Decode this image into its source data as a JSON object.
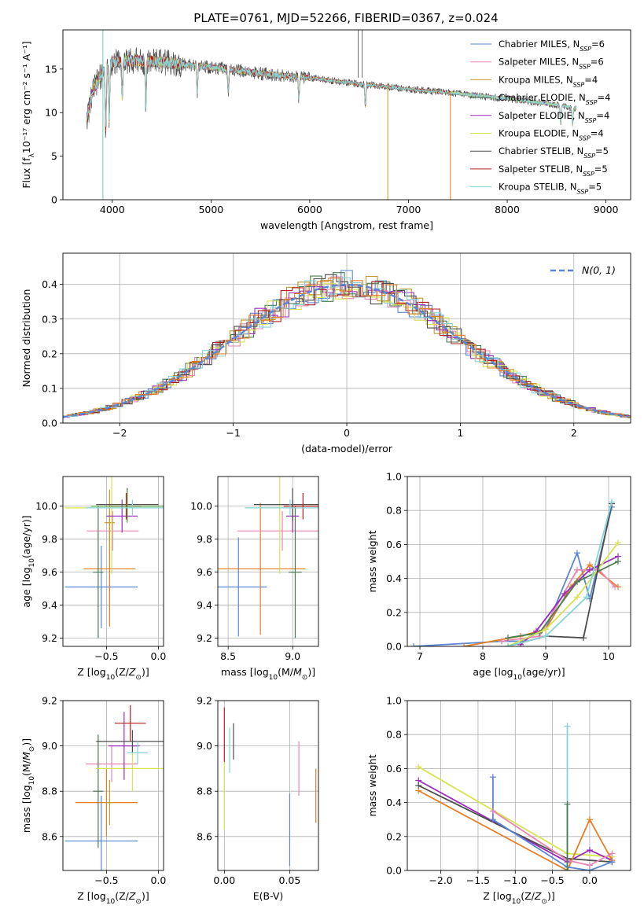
{
  "figure": {
    "title": "PLATE=0761, MJD=52266, FIBERID=0367, z=0.024"
  },
  "colors": {
    "Chabrier MILES": "#5b86d6",
    "Salpeter MILES": "#e887b3",
    "Kroupa MILES": "#c59a2a",
    "Chabrier ELODIE": "#4a7c53",
    "Salpeter ELODIE": "#9a2dbb",
    "Kroupa ELODIE": "#d8e350",
    "Chabrier STELIB": "#4d4d4d",
    "Salpeter STELIB": "#b41f1f",
    "Kroupa STELIB": "#86d4d6",
    "orange": "#e67e22",
    "green": "#5aa34a"
  },
  "chart_data": [
    {
      "id": "spectrum",
      "type": "line",
      "xlabel": "wavelength [Angstrom, rest frame]",
      "ylabel": "Flux [fλ10⁻¹⁷ erg cm⁻² s⁻¹ A⁻¹]",
      "xlim": [
        3500,
        9250
      ],
      "ylim": [
        0,
        19.5
      ],
      "xticks": [
        4000,
        5000,
        6000,
        7000,
        8000,
        9000
      ],
      "yticks": [
        0,
        5,
        10,
        15
      ],
      "grid": false,
      "legend_position": "top-right",
      "series": [
        {
          "name": "Chabrier MILES, N",
          "sub": "SSP",
          "suffix": "=6"
        },
        {
          "name": "Salpeter MILES, N",
          "sub": "SSP",
          "suffix": "=6"
        },
        {
          "name": "Kroupa MILES, N",
          "sub": "SSP",
          "suffix": "=4"
        },
        {
          "name": "Chabrier ELODIE, N",
          "sub": "SSP",
          "suffix": "=4"
        },
        {
          "name": "Salpeter ELODIE, N",
          "sub": "SSP",
          "suffix": "=4"
        },
        {
          "name": "Kroupa ELODIE, N",
          "sub": "SSP",
          "suffix": "=4"
        },
        {
          "name": "Chabrier STELIB, N",
          "sub": "SSP",
          "suffix": "=5"
        },
        {
          "name": "Salpeter STELIB, N",
          "sub": "SSP",
          "suffix": "=5"
        },
        {
          "name": "Kroupa STELIB, N",
          "sub": "SSP",
          "suffix": "=5"
        }
      ],
      "continuum": [
        [
          3750,
          9.5
        ],
        [
          3800,
          12.5
        ],
        [
          3900,
          14.5
        ],
        [
          4000,
          15.8
        ],
        [
          4200,
          16.0
        ],
        [
          4500,
          15.8
        ],
        [
          5000,
          15.2
        ],
        [
          5500,
          14.5
        ],
        [
          6000,
          14.0
        ],
        [
          6500,
          13.3
        ],
        [
          7000,
          12.7
        ],
        [
          7500,
          12.2
        ],
        [
          8000,
          11.6
        ],
        [
          8500,
          10.9
        ],
        [
          8700,
          10.5
        ]
      ]
    },
    {
      "id": "residuals",
      "type": "histogram",
      "xlabel": "(data-model)/error",
      "ylabel": "Normed distribution",
      "xlim": [
        -2.5,
        2.5
      ],
      "ylim": [
        0,
        0.49
      ],
      "xticks": [
        -2,
        -1,
        0,
        1,
        2
      ],
      "yticks": [
        0.0,
        0.1,
        0.2,
        0.3,
        0.4
      ],
      "grid": true,
      "legend": "N(0, 1)",
      "bin_width": 0.1,
      "reference_curve": "gaussian mean 0 sigma 1"
    },
    {
      "id": "age-vs-Z",
      "type": "scatter",
      "xlabel": "Z [log10(Z/Z⊙)]",
      "ylabel": "age  [log10(age/yr)]",
      "xlim": [
        -0.92,
        0.05
      ],
      "ylim": [
        9.15,
        10.18
      ],
      "xticks": [
        -0.5,
        0.0
      ],
      "yticks": [
        9.2,
        9.4,
        9.6,
        9.8,
        10.0
      ],
      "grid": true,
      "points": [
        {
          "series": "Chabrier MILES",
          "x": -0.55,
          "xerr": 0.35,
          "y": 9.51,
          "yerr": 0.25
        },
        {
          "series": "orange",
          "x": -0.47,
          "xerr": 0.25,
          "y": 9.62,
          "yerr": 0.35
        },
        {
          "series": "Salpeter MILES",
          "x": -0.44,
          "xerr": 0.25,
          "y": 9.85,
          "yerr": 0.12
        },
        {
          "series": "Chabrier ELODIE",
          "x": -0.58,
          "xerr": 0.05,
          "y": 9.6,
          "yerr": 0.4
        },
        {
          "series": "Kroupa MILES",
          "x": -0.47,
          "xerr": 0.05,
          "y": 9.9,
          "yerr": 0.2
        },
        {
          "series": "Kroupa ELODIE",
          "x": -0.45,
          "xerr": 0.45,
          "y": 9.99,
          "yerr": 0.4
        },
        {
          "series": "Salpeter ELODIE",
          "x": -0.35,
          "xerr": 0.15,
          "y": 9.94,
          "yerr": 0.1
        },
        {
          "series": "Chabrier STELIB",
          "x": -0.3,
          "xerr": 0.3,
          "y": 10.01,
          "yerr": 0.1
        },
        {
          "series": "Salpeter STELIB",
          "x": -0.31,
          "xerr": 0.15,
          "y": 10.0,
          "yerr": 0.08
        },
        {
          "series": "green",
          "x": -0.3,
          "xerr": 0.35,
          "y": 10.0,
          "yerr": 0.1
        },
        {
          "series": "Kroupa STELIB",
          "x": -0.25,
          "xerr": 0.45,
          "y": 9.99,
          "yerr": 0.05
        }
      ]
    },
    {
      "id": "age-vs-mass",
      "type": "scatter",
      "xlabel": "mass [log10(M/M⊙)]",
      "xlim": [
        8.42,
        9.2
      ],
      "ylim": [
        9.15,
        10.18
      ],
      "xticks": [
        8.5,
        9.0
      ],
      "yticks": [
        9.2,
        9.4,
        9.6,
        9.8,
        10.0
      ],
      "grid": true,
      "points": [
        {
          "series": "Chabrier MILES",
          "x": 8.58,
          "xerr": 0.22,
          "y": 9.51,
          "yerr": 0.3
        },
        {
          "series": "orange",
          "x": 8.75,
          "xerr": 0.35,
          "y": 9.62,
          "yerr": 0.4
        },
        {
          "series": "Salpeter MILES",
          "x": 8.92,
          "xerr": 0.35,
          "y": 9.85,
          "yerr": 0.12
        },
        {
          "series": "Chabrier ELODIE",
          "x": 9.02,
          "xerr": 0.05,
          "y": 9.6,
          "yerr": 0.4
        },
        {
          "series": "Kroupa ELODIE",
          "x": 8.9,
          "xerr": 0.15,
          "y": 9.99,
          "yerr": 0.4
        },
        {
          "series": "Salpeter ELODIE",
          "x": 9.0,
          "xerr": 0.05,
          "y": 9.94,
          "yerr": 0.1
        },
        {
          "series": "Chabrier STELIB",
          "x": 9.0,
          "xerr": 0.3,
          "y": 10.01,
          "yerr": 0.1
        },
        {
          "series": "Salpeter STELIB",
          "x": 9.08,
          "xerr": 0.15,
          "y": 10.0,
          "yerr": 0.08
        },
        {
          "series": "Kroupa STELIB",
          "x": 8.98,
          "xerr": 0.35,
          "y": 9.99,
          "yerr": 0.05
        }
      ]
    },
    {
      "id": "weight-vs-age",
      "type": "line",
      "xlabel": "age  [log10(age/yr)]",
      "ylabel": "mass weight",
      "xlim": [
        6.8,
        10.35
      ],
      "ylim": [
        0.0,
        1.0
      ],
      "xticks": [
        7,
        8,
        9,
        10
      ],
      "yticks": [
        0.0,
        0.2,
        0.4,
        0.6,
        0.8,
        1.0
      ],
      "grid": true,
      "series": [
        {
          "name": "Chabrier MILES",
          "points": [
            [
              6.9,
              0.0
            ],
            [
              8.3,
              0.03
            ],
            [
              8.6,
              0.03
            ],
            [
              9.0,
              0.1
            ],
            [
              9.5,
              0.55
            ],
            [
              9.7,
              0.28
            ],
            [
              10.05,
              0.82
            ]
          ]
        },
        {
          "name": "orange",
          "points": [
            [
              7.7,
              0.0
            ],
            [
              8.6,
              0.06
            ],
            [
              9.0,
              0.1
            ],
            [
              9.4,
              0.35
            ],
            [
              9.7,
              0.48
            ],
            [
              10.15,
              0.35
            ]
          ]
        },
        {
          "name": "Salpeter MILES",
          "points": [
            [
              8.3,
              0.03
            ],
            [
              8.9,
              0.06
            ],
            [
              9.5,
              0.45
            ],
            [
              9.85,
              0.45
            ],
            [
              10.1,
              0.35
            ]
          ]
        },
        {
          "name": "Salpeter ELODIE",
          "points": [
            [
              8.6,
              0.01
            ],
            [
              8.85,
              0.09
            ],
            [
              9.3,
              0.31
            ],
            [
              9.7,
              0.45
            ],
            [
              10.15,
              0.53
            ]
          ]
        },
        {
          "name": "Chabrier ELODIE",
          "points": [
            [
              8.4,
              0.05
            ],
            [
              8.9,
              0.08
            ],
            [
              9.5,
              0.38
            ],
            [
              10.15,
              0.5
            ]
          ]
        },
        {
          "name": "Kroupa ELODIE",
          "points": [
            [
              8.4,
              0.0
            ],
            [
              9.0,
              0.1
            ],
            [
              9.5,
              0.29
            ],
            [
              10.15,
              0.61
            ]
          ]
        },
        {
          "name": "Chabrier STELIB",
          "points": [
            [
              8.4,
              0.0
            ],
            [
              9.0,
              0.06
            ],
            [
              9.6,
              0.05
            ],
            [
              10.05,
              0.84
            ]
          ]
        },
        {
          "name": "Kroupa STELIB",
          "points": [
            [
              8.4,
              0.0
            ],
            [
              9.0,
              0.06
            ],
            [
              9.65,
              0.29
            ],
            [
              10.05,
              0.85
            ]
          ]
        }
      ]
    },
    {
      "id": "mass-vs-Z",
      "type": "scatter",
      "xlabel": "Z [log10(Z/Z⊙)]",
      "ylabel": "mass [log10(M/M⊙)]",
      "xlim": [
        -0.92,
        0.05
      ],
      "ylim": [
        8.45,
        9.2
      ],
      "xticks": [
        -0.5,
        0.0
      ],
      "yticks": [
        8.6,
        8.8,
        9.0,
        9.2
      ],
      "grid": true,
      "points": [
        {
          "series": "Chabrier MILES",
          "x": -0.55,
          "xerr": 0.35,
          "y": 8.58,
          "yerr": 0.2
        },
        {
          "series": "orange",
          "x": -0.5,
          "xerr": 0.3,
          "y": 8.75,
          "yerr": 0.15
        },
        {
          "series": "Salpeter MILES",
          "x": -0.45,
          "xerr": 0.25,
          "y": 8.92,
          "yerr": 0.08
        },
        {
          "series": "Chabrier ELODIE",
          "x": -0.58,
          "xerr": 0.05,
          "y": 8.8,
          "yerr": 0.25
        },
        {
          "series": "Kroupa MILES",
          "x": -0.47,
          "xerr": 0.05,
          "y": 8.75,
          "yerr": 0.1
        },
        {
          "series": "Kroupa ELODIE",
          "x": -0.25,
          "xerr": 0.35,
          "y": 8.9,
          "yerr": 0.1
        },
        {
          "series": "Salpeter ELODIE",
          "x": -0.33,
          "xerr": 0.15,
          "y": 9.0,
          "yerr": 0.15
        },
        {
          "series": "Chabrier STELIB",
          "x": -0.25,
          "xerr": 0.35,
          "y": 9.02,
          "yerr": 0.05
        },
        {
          "series": "Salpeter STELIB",
          "x": -0.27,
          "xerr": 0.15,
          "y": 9.1,
          "yerr": 0.08
        },
        {
          "series": "Kroupa STELIB",
          "x": -0.2,
          "xerr": 0.1,
          "y": 8.97,
          "yerr": 0.05
        }
      ]
    },
    {
      "id": "mass-vs-EBV",
      "type": "scatter",
      "xlabel": "E(B-V)",
      "xlim": [
        -0.005,
        0.072
      ],
      "ylim": [
        8.45,
        9.2
      ],
      "xticks": [
        0.0,
        0.05
      ],
      "yticks": [
        8.6,
        8.8,
        9.0,
        9.2
      ],
      "grid": true,
      "points": [
        {
          "series": "Kroupa ELODIE",
          "x": 0.0,
          "y": 8.78,
          "yerr": 0.15
        },
        {
          "series": "Salpeter STELIB",
          "x": 0.0,
          "y": 9.05,
          "yerr": 0.12
        },
        {
          "series": "Chabrier STELIB",
          "x": 0.007,
          "y": 9.02,
          "yerr": 0.08
        },
        {
          "series": "Kroupa STELIB",
          "x": 0.004,
          "y": 8.98,
          "yerr": 0.1
        },
        {
          "series": "Chabrier MILES",
          "x": 0.05,
          "y": 8.63,
          "yerr": 0.16
        },
        {
          "series": "Salpeter MILES",
          "x": 0.057,
          "y": 8.9,
          "yerr": 0.12
        },
        {
          "series": "orange",
          "x": 0.07,
          "y": 8.78,
          "yerr": 0.12
        }
      ]
    },
    {
      "id": "weight-vs-Z",
      "type": "line",
      "xlabel": "Z [log10(Z/Z⊙)]",
      "ylabel": "mass weight",
      "xlim": [
        -2.45,
        0.55
      ],
      "ylim": [
        0.0,
        1.0
      ],
      "xticks": [
        -2.0,
        -1.5,
        -1.0,
        -0.5,
        0.0
      ],
      "yticks": [
        0.0,
        0.2,
        0.4,
        0.6,
        0.8,
        1.0
      ],
      "grid": true,
      "series": [
        {
          "name": "Kroupa ELODIE",
          "points": [
            [
              -2.3,
              0.61
            ],
            [
              -0.3,
              0.1
            ],
            [
              0.3,
              0.08
            ]
          ]
        },
        {
          "name": "Salpeter ELODIE",
          "points": [
            [
              -2.3,
              0.53
            ],
            [
              -0.3,
              0.05
            ],
            [
              0.0,
              0.12
            ],
            [
              0.3,
              0.06
            ]
          ]
        },
        {
          "name": "Chabrier STELIB",
          "points": [
            [
              -2.3,
              0.5
            ],
            [
              -0.3,
              0.07
            ],
            [
              0.3,
              0.05
            ]
          ]
        },
        {
          "name": "orange",
          "points": [
            [
              -2.3,
              0.47
            ],
            [
              -0.3,
              0.0
            ],
            [
              0.0,
              0.3
            ],
            [
              0.3,
              0.06
            ]
          ]
        },
        {
          "name": "Chabrier MILES",
          "points": [
            [
              -1.3,
              0.55
            ],
            [
              -1.3,
              0.3
            ],
            [
              -0.3,
              0.02
            ],
            [
              0.0,
              0.0
            ],
            [
              0.3,
              0.05
            ]
          ]
        },
        {
          "name": "Salpeter MILES",
          "points": [
            [
              -1.3,
              0.35
            ],
            [
              -0.3,
              0.06
            ],
            [
              0.0,
              0.03
            ],
            [
              0.3,
              0.1
            ]
          ]
        },
        {
          "name": "Kroupa STELIB",
          "points": [
            [
              -0.3,
              0.85
            ],
            [
              -0.3,
              0.0
            ]
          ]
        },
        {
          "name": "Chabrier ELODIE",
          "points": [
            [
              -0.3,
              0.39
            ],
            [
              -0.3,
              0.0
            ]
          ]
        }
      ]
    }
  ]
}
